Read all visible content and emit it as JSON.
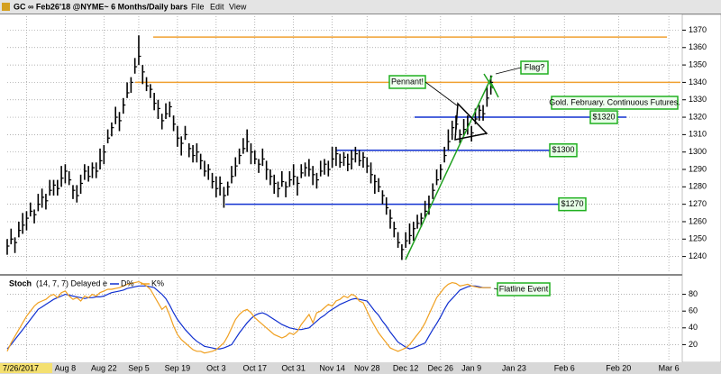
{
  "window": {
    "title": "GC ∞ Feb26'18 @NYME~  6 Months/Daily bars",
    "menu": [
      "File",
      "Edit",
      "View"
    ]
  },
  "chart_data": [
    {
      "type": "ohlc",
      "color": "#000000",
      "xlim": [
        0,
        174
      ],
      "xticks": [
        {
          "value": 5,
          "label": "7/26/2017"
        },
        {
          "value": 15,
          "label": "Aug 8"
        },
        {
          "value": 25,
          "label": "Aug 22"
        },
        {
          "value": 34,
          "label": "Sep 5"
        },
        {
          "value": 44,
          "label": "Sep 19"
        },
        {
          "value": 54,
          "label": "Oct 3"
        },
        {
          "value": 64,
          "label": "Oct 17"
        },
        {
          "value": 74,
          "label": "Oct 31"
        },
        {
          "value": 84,
          "label": "Nov 14"
        },
        {
          "value": 93,
          "label": "Nov 28"
        },
        {
          "value": 103,
          "label": "Dec 12"
        },
        {
          "value": 112,
          "label": "Dec 26"
        },
        {
          "value": 120,
          "label": "Jan 9"
        },
        {
          "value": 131,
          "label": "Jan 23"
        },
        {
          "value": 144,
          "label": "Feb 6"
        },
        {
          "value": 158,
          "label": "Feb 20"
        },
        {
          "value": 171,
          "label": "Mar 6"
        }
      ],
      "ylim": [
        1231,
        1378
      ],
      "yticks": [
        1240,
        1250,
        1260,
        1270,
        1280,
        1290,
        1300,
        1310,
        1320,
        1330,
        1340,
        1350,
        1360,
        1370
      ],
      "grid": true,
      "high": [
        1250,
        1256,
        1251,
        1260,
        1265,
        1266,
        1271,
        1267,
        1276,
        1279,
        1276,
        1284,
        1284,
        1284,
        1292,
        1293,
        1289,
        1281,
        1281,
        1287,
        1293,
        1292,
        1294,
        1294,
        1302,
        1304,
        1313,
        1317,
        1326,
        1323,
        1331,
        1340,
        1343,
        1354,
        1367,
        1350,
        1343,
        1339,
        1334,
        1330,
        1322,
        1328,
        1329,
        1321,
        1315,
        1309,
        1315,
        1305,
        1304,
        1305,
        1299,
        1295,
        1293,
        1288,
        1286,
        1286,
        1280,
        1283,
        1292,
        1297,
        1302,
        1308,
        1313,
        1305,
        1301,
        1296,
        1302,
        1295,
        1290,
        1287,
        1283,
        1289,
        1283,
        1289,
        1293,
        1286,
        1293,
        1294,
        1296,
        1292,
        1288,
        1295,
        1296,
        1295,
        1303,
        1303,
        1299,
        1300,
        1299,
        1301,
        1303,
        1301,
        1300,
        1297,
        1294,
        1287,
        1285,
        1278,
        1274,
        1267,
        1260,
        1254,
        1247,
        1254,
        1259,
        1260,
        1264,
        1265,
        1272,
        1275,
        1282,
        1290,
        1293,
        1303,
        1313,
        1318,
        1321,
        1313,
        1319,
        1321,
        1315,
        1325,
        1327,
        1327,
        1338,
        1344
      ],
      "low": [
        1241,
        1247,
        1242,
        1251,
        1253,
        1255,
        1263,
        1259,
        1266,
        1268,
        1267,
        1275,
        1275,
        1275,
        1280,
        1282,
        1281,
        1273,
        1271,
        1276,
        1284,
        1283,
        1285,
        1285,
        1290,
        1293,
        1305,
        1309,
        1316,
        1312,
        1322,
        1331,
        1334,
        1345,
        1350,
        1339,
        1335,
        1331,
        1324,
        1319,
        1313,
        1319,
        1320,
        1312,
        1303,
        1298,
        1307,
        1297,
        1294,
        1294,
        1290,
        1286,
        1284,
        1279,
        1274,
        1275,
        1268,
        1275,
        1282,
        1286,
        1293,
        1299,
        1300,
        1293,
        1293,
        1288,
        1292,
        1284,
        1281,
        1276,
        1274,
        1280,
        1274,
        1280,
        1281,
        1275,
        1285,
        1286,
        1286,
        1281,
        1279,
        1286,
        1287,
        1286,
        1291,
        1292,
        1291,
        1292,
        1289,
        1290,
        1294,
        1292,
        1291,
        1288,
        1282,
        1276,
        1277,
        1270,
        1264,
        1256,
        1251,
        1245,
        1238,
        1245,
        1247,
        1249,
        1256,
        1257,
        1262,
        1264,
        1273,
        1281,
        1284,
        1294,
        1301,
        1307,
        1313,
        1305,
        1309,
        1310,
        1306,
        1316,
        1318,
        1318,
        1326,
        1333
      ],
      "close": [
        1246,
        1250,
        1248,
        1255,
        1258,
        1262,
        1266,
        1264,
        1270,
        1274,
        1272,
        1278,
        1281,
        1279,
        1285,
        1289,
        1284,
        1278,
        1275,
        1282,
        1289,
        1286,
        1291,
        1289,
        1295,
        1300,
        1308,
        1314,
        1320,
        1318,
        1327,
        1334,
        1340,
        1349,
        1355,
        1346,
        1338,
        1336,
        1328,
        1325,
        1318,
        1322,
        1326,
        1316,
        1308,
        1305,
        1310,
        1302,
        1298,
        1300,
        1295,
        1289,
        1290,
        1283,
        1279,
        1282,
        1275,
        1280,
        1286,
        1292,
        1298,
        1302,
        1306,
        1300,
        1296,
        1293,
        1296,
        1290,
        1286,
        1282,
        1279,
        1283,
        1280,
        1284,
        1286,
        1282,
        1288,
        1291,
        1290,
        1287,
        1284,
        1289,
        1293,
        1290,
        1296,
        1299,
        1294,
        1297,
        1293,
        1296,
        1299,
        1295,
        1297,
        1292,
        1287,
        1283,
        1280,
        1275,
        1268,
        1262,
        1256,
        1248,
        1244,
        1249,
        1252,
        1256,
        1259,
        1262,
        1266,
        1270,
        1278,
        1284,
        1290,
        1298,
        1306,
        1314,
        1316,
        1310,
        1313,
        1316,
        1311,
        1319,
        1324,
        1322,
        1331,
        1340
      ],
      "levels": [
        {
          "value": 1366,
          "color": "#f0a030"
        },
        {
          "value": 1340,
          "color": "#f0a030"
        },
        {
          "value": 1320,
          "color": "#1030d0",
          "label": "$1320"
        },
        {
          "value": 1301,
          "color": "#1030d0",
          "label": "$1300"
        },
        {
          "value": 1270,
          "color": "#1030d0",
          "label": "$1270"
        }
      ],
      "annotations": [
        "Pennant!",
        "Flag?",
        "Gold. February. Continuous Futures."
      ]
    },
    {
      "type": "line",
      "title": "Stoch",
      "subtitle": "(14, 7, 7) Delayed e",
      "ylim": [
        0,
        100
      ],
      "yticks": [
        20,
        40,
        60,
        80
      ],
      "grid": true,
      "annotations": [
        "Flatline Event"
      ],
      "series": [
        {
          "name": "D%",
          "color": "#1030d0",
          "values": [
            15,
            20,
            26,
            32,
            38,
            44,
            50,
            56,
            62,
            65,
            68,
            71,
            74,
            76,
            78,
            80,
            79,
            78,
            77,
            76,
            75,
            76,
            76,
            77,
            77,
            78,
            80,
            82,
            83,
            84,
            85,
            87,
            88,
            89,
            90,
            90,
            90,
            89,
            88,
            84,
            80,
            75,
            67,
            58,
            50,
            44,
            38,
            33,
            28,
            24,
            21,
            18,
            17,
            16,
            15,
            15,
            16,
            18,
            20,
            27,
            34,
            40,
            46,
            51,
            55,
            57,
            58,
            56,
            53,
            50,
            47,
            44,
            42,
            40,
            39,
            38,
            38,
            39,
            40,
            44,
            48,
            52,
            55,
            59,
            62,
            65,
            68,
            70,
            72,
            74,
            75,
            74,
            73,
            72,
            66,
            60,
            55,
            48,
            42,
            35,
            29,
            23,
            20,
            17,
            15,
            16,
            18,
            20,
            22,
            30,
            38,
            45,
            53,
            62,
            70,
            75,
            80,
            85,
            87,
            89,
            90,
            90,
            89,
            88,
            88,
            88
          ]
        },
        {
          "name": "K%",
          "color": "#f0a020",
          "values": [
            12,
            22,
            30,
            38,
            46,
            54,
            60,
            66,
            70,
            72,
            74,
            78,
            80,
            76,
            82,
            84,
            78,
            74,
            76,
            72,
            78,
            76,
            80,
            78,
            82,
            84,
            86,
            86,
            87,
            88,
            90,
            92,
            93,
            94,
            95,
            93,
            90,
            86,
            78,
            70,
            62,
            66,
            55,
            42,
            32,
            26,
            22,
            18,
            14,
            12,
            12,
            10,
            11,
            12,
            14,
            18,
            22,
            30,
            40,
            50,
            56,
            60,
            62,
            58,
            52,
            48,
            44,
            40,
            36,
            32,
            30,
            28,
            30,
            34,
            32,
            36,
            44,
            50,
            56,
            46,
            58,
            60,
            64,
            68,
            66,
            72,
            74,
            78,
            76,
            80,
            78,
            72,
            70,
            60,
            50,
            42,
            34,
            28,
            22,
            16,
            14,
            12,
            14,
            16,
            20,
            26,
            32,
            38,
            46,
            56,
            66,
            76,
            82,
            88,
            92,
            94,
            93,
            90,
            91,
            92,
            90,
            89,
            88,
            88,
            88,
            88
          ]
        }
      ]
    }
  ]
}
